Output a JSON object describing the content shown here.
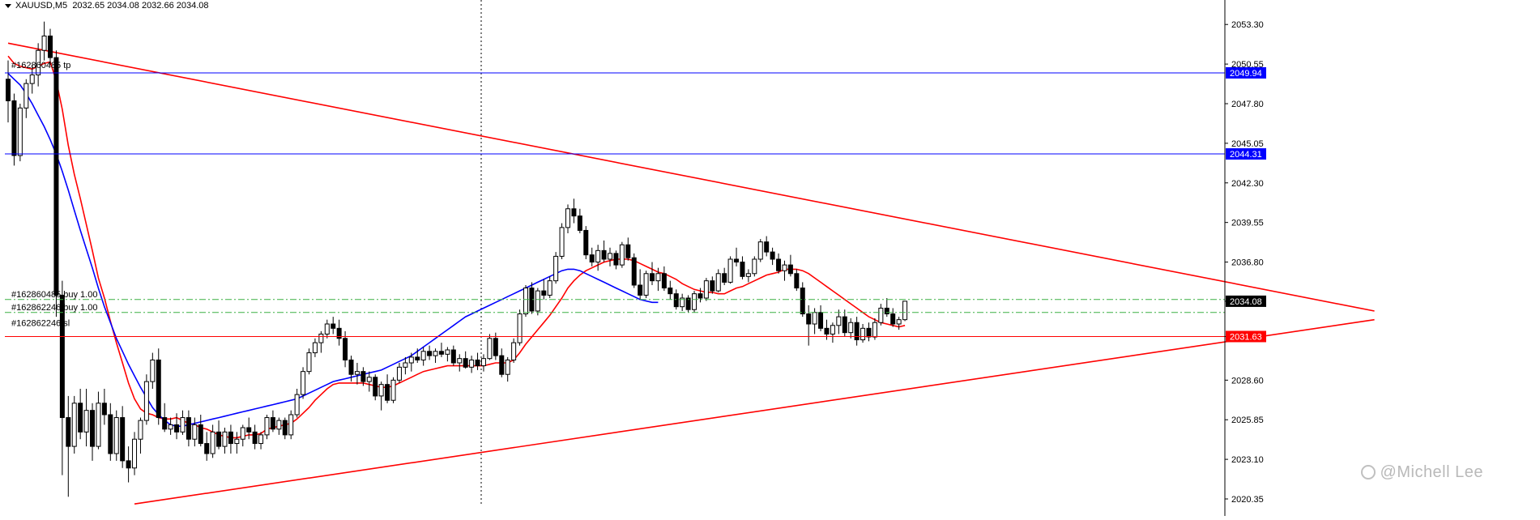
{
  "header": {
    "symbol": "XAUUSD,M5",
    "ohlc": "2032.65 2034.08 2032.66 2034.08"
  },
  "watermark": "@Michell Lee",
  "chart_data": {
    "type": "candlestick",
    "ylim": [
      2019.9,
      2055.0
    ],
    "y_ticks": [
      "2053.30",
      "2050.55",
      "2047.80",
      "2045.05",
      "2042.30",
      "2039.55",
      "2036.80",
      "2034.08",
      "2031.63",
      "2028.60",
      "2025.85",
      "2023.10",
      "2020.35"
    ],
    "current_price": {
      "value": 2034.08,
      "label": "2034.08",
      "color": "#000000"
    },
    "price_lines": [
      {
        "value": 2049.94,
        "label": "2049.94",
        "color": "#0000ff"
      },
      {
        "value": 2044.31,
        "label": "2044.31",
        "color": "#0000ff"
      },
      {
        "value": 2031.63,
        "label": "2031.63",
        "color": "#ff0000"
      }
    ],
    "order_lines": [
      {
        "value": 2034.2,
        "label": "#162860485 buy 1.00",
        "color": "#3cb043",
        "style": "dash-dot"
      },
      {
        "value": 2033.3,
        "label": "#162862246 buy 1.00",
        "color": "#3cb043",
        "style": "dash-dot"
      }
    ],
    "order_tags": [
      {
        "value": 2050.1,
        "label": "#162860485 tp"
      },
      {
        "value": 2032.2,
        "label": "#162862246 sl"
      }
    ],
    "trendlines": [
      {
        "from": [
          0,
          2052.0
        ],
        "to": [
          227,
          2033.4
        ],
        "color": "#ff0000"
      },
      {
        "from": [
          21,
          2020.0
        ],
        "to": [
          227,
          2032.8
        ],
        "color": "#ff0000"
      }
    ],
    "ohlc": [
      [
        2049.5,
        2050.8,
        2046.5,
        2048.0
      ],
      [
        2048.0,
        2048.5,
        2043.5,
        2044.2
      ],
      [
        2044.2,
        2047.8,
        2043.8,
        2047.5
      ],
      [
        2047.5,
        2049.5,
        2046.8,
        2049.2
      ],
      [
        2049.2,
        2050.5,
        2048.5,
        2049.8
      ],
      [
        2049.8,
        2052.0,
        2049.0,
        2051.5
      ],
      [
        2051.5,
        2053.5,
        2050.8,
        2052.5
      ],
      [
        2052.5,
        2053.0,
        2050.5,
        2051.0
      ],
      [
        2051.0,
        2051.5,
        2033.0,
        2034.5
      ],
      [
        2034.5,
        2035.5,
        2022.0,
        2026.0
      ],
      [
        2026.0,
        2027.5,
        2020.5,
        2024.0
      ],
      [
        2024.0,
        2027.5,
        2023.5,
        2027.0
      ],
      [
        2027.0,
        2028.0,
        2024.5,
        2025.0
      ],
      [
        2025.0,
        2028.0,
        2024.0,
        2026.5
      ],
      [
        2026.5,
        2027.0,
        2023.0,
        2024.0
      ],
      [
        2024.0,
        2027.8,
        2023.8,
        2027.0
      ],
      [
        2027.0,
        2028.0,
        2025.5,
        2026.2
      ],
      [
        2026.2,
        2027.0,
        2023.0,
        2023.5
      ],
      [
        2023.5,
        2026.5,
        2023.0,
        2026.0
      ],
      [
        2026.0,
        2026.8,
        2022.5,
        2023.0
      ],
      [
        2023.0,
        2024.0,
        2021.5,
        2022.5
      ],
      [
        2022.5,
        2025.0,
        2022.0,
        2024.5
      ],
      [
        2024.5,
        2026.0,
        2023.5,
        2025.8
      ],
      [
        2025.8,
        2029.0,
        2025.5,
        2028.5
      ],
      [
        2028.5,
        2030.5,
        2028.0,
        2030.0
      ],
      [
        2030.0,
        2030.8,
        2025.5,
        2026.0
      ],
      [
        2026.0,
        2027.0,
        2025.0,
        2025.2
      ],
      [
        2025.2,
        2026.0,
        2024.8,
        2025.5
      ],
      [
        2025.5,
        2026.3,
        2024.5,
        2025.0
      ],
      [
        2025.0,
        2026.5,
        2024.8,
        2026.0
      ],
      [
        2026.0,
        2026.5,
        2024.0,
        2024.5
      ],
      [
        2024.5,
        2026.0,
        2024.0,
        2025.5
      ],
      [
        2025.5,
        2026.2,
        2024.0,
        2024.2
      ],
      [
        2024.2,
        2025.0,
        2023.0,
        2023.5
      ],
      [
        2023.5,
        2025.5,
        2023.2,
        2025.0
      ],
      [
        2025.0,
        2025.8,
        2023.8,
        2024.0
      ],
      [
        2024.0,
        2025.3,
        2023.5,
        2025.0
      ],
      [
        2025.0,
        2025.5,
        2023.5,
        2024.2
      ],
      [
        2024.2,
        2025.0,
        2023.5,
        2024.5
      ],
      [
        2024.5,
        2025.5,
        2024.0,
        2025.3
      ],
      [
        2025.3,
        2026.0,
        2024.5,
        2025.0
      ],
      [
        2025.0,
        2025.5,
        2023.8,
        2024.2
      ],
      [
        2024.2,
        2025.0,
        2023.8,
        2024.8
      ],
      [
        2024.8,
        2026.2,
        2024.5,
        2026.0
      ],
      [
        2026.0,
        2026.5,
        2025.0,
        2025.2
      ],
      [
        2025.2,
        2026.0,
        2024.8,
        2025.8
      ],
      [
        2025.8,
        2026.0,
        2024.5,
        2024.8
      ],
      [
        2024.8,
        2026.5,
        2024.5,
        2026.2
      ],
      [
        2026.2,
        2028.0,
        2026.0,
        2027.6
      ],
      [
        2027.6,
        2029.5,
        2027.3,
        2029.2
      ],
      [
        2029.2,
        2030.8,
        2029.0,
        2030.5
      ],
      [
        2030.5,
        2031.5,
        2030.2,
        2031.2
      ],
      [
        2031.2,
        2032.0,
        2030.5,
        2031.8
      ],
      [
        2031.8,
        2032.8,
        2031.5,
        2032.5
      ],
      [
        2032.5,
        2033.0,
        2031.8,
        2032.2
      ],
      [
        2032.2,
        2032.8,
        2031.0,
        2031.5
      ],
      [
        2031.5,
        2032.0,
        2029.5,
        2030.0
      ],
      [
        2030.0,
        2030.3,
        2028.5,
        2029.0
      ],
      [
        2029.0,
        2029.8,
        2028.3,
        2029.2
      ],
      [
        2029.2,
        2029.5,
        2028.2,
        2028.5
      ],
      [
        2028.5,
        2029.2,
        2027.8,
        2028.8
      ],
      [
        2028.8,
        2029.0,
        2027.2,
        2027.5
      ],
      [
        2027.5,
        2028.5,
        2026.5,
        2028.3
      ],
      [
        2028.3,
        2029.0,
        2027.0,
        2027.2
      ],
      [
        2027.2,
        2028.8,
        2027.0,
        2028.6
      ],
      [
        2028.6,
        2029.8,
        2028.4,
        2029.5
      ],
      [
        2029.5,
        2030.2,
        2029.0,
        2029.8
      ],
      [
        2029.8,
        2030.5,
        2029.2,
        2030.2
      ],
      [
        2030.2,
        2030.8,
        2029.8,
        2030.0
      ],
      [
        2030.0,
        2030.9,
        2029.6,
        2030.6
      ],
      [
        2030.6,
        2031.0,
        2030.0,
        2030.3
      ],
      [
        2030.3,
        2030.8,
        2029.8,
        2030.6
      ],
      [
        2030.6,
        2031.2,
        2030.2,
        2030.4
      ],
      [
        2030.4,
        2030.9,
        2029.9,
        2030.7
      ],
      [
        2030.7,
        2031.0,
        2029.6,
        2029.8
      ],
      [
        2029.8,
        2030.4,
        2029.2,
        2030.1
      ],
      [
        2030.1,
        2030.6,
        2029.4,
        2029.5
      ],
      [
        2029.5,
        2030.3,
        2029.1,
        2030.0
      ],
      [
        2030.0,
        2030.5,
        2029.3,
        2029.6
      ],
      [
        2029.6,
        2030.4,
        2029.2,
        2030.1
      ],
      [
        2030.1,
        2031.8,
        2030.0,
        2031.5
      ],
      [
        2031.5,
        2031.9,
        2030.0,
        2030.3
      ],
      [
        2030.3,
        2030.8,
        2028.8,
        2029.0
      ],
      [
        2029.0,
        2030.2,
        2028.5,
        2030.0
      ],
      [
        2030.0,
        2031.5,
        2029.8,
        2031.2
      ],
      [
        2031.2,
        2033.5,
        2031.0,
        2033.2
      ],
      [
        2033.2,
        2035.2,
        2033.0,
        2035.0
      ],
      [
        2035.0,
        2035.4,
        2033.2,
        2033.4
      ],
      [
        2033.4,
        2035.0,
        2033.1,
        2034.8
      ],
      [
        2034.8,
        2035.6,
        2034.2,
        2034.5
      ],
      [
        2034.5,
        2035.8,
        2034.3,
        2035.5
      ],
      [
        2035.5,
        2037.5,
        2035.3,
        2037.2
      ],
      [
        2037.2,
        2039.5,
        2037.0,
        2039.2
      ],
      [
        2039.2,
        2040.8,
        2038.8,
        2040.5
      ],
      [
        2040.5,
        2041.2,
        2039.5,
        2040.0
      ],
      [
        2040.0,
        2040.5,
        2038.8,
        2039.0
      ],
      [
        2039.0,
        2039.3,
        2037.0,
        2037.3
      ],
      [
        2037.3,
        2037.8,
        2036.5,
        2036.8
      ],
      [
        2036.8,
        2038.0,
        2036.2,
        2037.6
      ],
      [
        2037.6,
        2038.3,
        2036.8,
        2037.0
      ],
      [
        2037.0,
        2037.8,
        2036.5,
        2037.4
      ],
      [
        2037.4,
        2037.6,
        2036.3,
        2036.6
      ],
      [
        2036.6,
        2038.2,
        2036.4,
        2038.0
      ],
      [
        2038.0,
        2038.5,
        2036.9,
        2037.1
      ],
      [
        2037.1,
        2037.4,
        2035.0,
        2035.2
      ],
      [
        2035.2,
        2036.3,
        2034.2,
        2034.5
      ],
      [
        2034.5,
        2036.2,
        2034.3,
        2036.0
      ],
      [
        2036.0,
        2036.8,
        2035.2,
        2035.5
      ],
      [
        2035.5,
        2036.4,
        2034.8,
        2036.0
      ],
      [
        2036.0,
        2036.5,
        2034.8,
        2035.0
      ],
      [
        2035.0,
        2035.5,
        2034.2,
        2034.6
      ],
      [
        2034.6,
        2034.9,
        2033.5,
        2033.7
      ],
      [
        2033.7,
        2034.6,
        2033.4,
        2034.3
      ],
      [
        2034.3,
        2034.5,
        2033.3,
        2033.5
      ],
      [
        2033.5,
        2034.8,
        2033.3,
        2034.6
      ],
      [
        2034.6,
        2035.0,
        2034.0,
        2034.3
      ],
      [
        2034.3,
        2035.7,
        2034.1,
        2035.5
      ],
      [
        2035.5,
        2035.8,
        2034.6,
        2034.8
      ],
      [
        2034.8,
        2036.3,
        2034.7,
        2036.0
      ],
      [
        2036.0,
        2036.4,
        2035.2,
        2035.4
      ],
      [
        2035.4,
        2037.2,
        2035.3,
        2037.0
      ],
      [
        2037.0,
        2037.8,
        2036.5,
        2036.8
      ],
      [
        2036.8,
        2037.2,
        2035.6,
        2035.8
      ],
      [
        2035.8,
        2036.3,
        2035.4,
        2036.0
      ],
      [
        2036.0,
        2037.2,
        2035.8,
        2037.0
      ],
      [
        2037.0,
        2038.4,
        2036.8,
        2038.2
      ],
      [
        2038.2,
        2038.6,
        2037.2,
        2037.5
      ],
      [
        2037.5,
        2037.8,
        2036.6,
        2037.0
      ],
      [
        2037.0,
        2037.4,
        2036.0,
        2036.2
      ],
      [
        2036.2,
        2036.9,
        2035.5,
        2036.6
      ],
      [
        2036.6,
        2037.3,
        2035.8,
        2036.0
      ],
      [
        2036.0,
        2036.3,
        2034.8,
        2035.0
      ],
      [
        2035.0,
        2035.4,
        2033.0,
        2033.2
      ],
      [
        2033.2,
        2033.8,
        2031.0,
        2032.5
      ],
      [
        2032.5,
        2033.6,
        2031.8,
        2033.3
      ],
      [
        2033.3,
        2033.8,
        2032.0,
        2032.2
      ],
      [
        2032.2,
        2032.8,
        2031.4,
        2031.8
      ],
      [
        2031.8,
        2032.6,
        2031.2,
        2032.4
      ],
      [
        2032.4,
        2033.5,
        2031.8,
        2033.0
      ],
      [
        2033.0,
        2033.5,
        2031.6,
        2031.9
      ],
      [
        2031.9,
        2032.9,
        2031.5,
        2032.6
      ],
      [
        2032.6,
        2033.0,
        2031.0,
        2031.4
      ],
      [
        2031.4,
        2032.5,
        2031.2,
        2032.2
      ],
      [
        2032.2,
        2032.6,
        2031.3,
        2031.6
      ],
      [
        2031.6,
        2032.9,
        2031.4,
        2032.6
      ],
      [
        2032.6,
        2033.9,
        2032.4,
        2033.6
      ],
      [
        2033.6,
        2034.3,
        2033.0,
        2033.2
      ],
      [
        2033.2,
        2033.6,
        2032.3,
        2032.5
      ],
      [
        2032.5,
        2033.0,
        2032.1,
        2032.8
      ],
      [
        2032.8,
        2034.1,
        2032.7,
        2034.08
      ]
    ],
    "series": [
      {
        "name": "",
        "color": "#ff0000",
        "values": [
          2051.1,
          2050.6,
          2050.4,
          2050.3,
          2050.2,
          2050.4,
          2050.6,
          2050.7,
          2049.4,
          2047.4,
          2044.9,
          2042.9,
          2041.2,
          2039.4,
          2037.6,
          2035.7,
          2034.3,
          2032.7,
          2031.2,
          2029.8,
          2028.4,
          2027.3,
          2026.6,
          2026.3,
          2026.2,
          2026.0,
          2025.9,
          2025.9,
          2026.0,
          2025.8,
          2025.6,
          2025.5,
          2025.3,
          2025.2,
          2025.0,
          2024.8,
          2024.7,
          2024.6,
          2024.6,
          2024.7,
          2024.8,
          2024.8,
          2024.9,
          2025.2,
          2025.3,
          2025.4,
          2025.5,
          2025.6,
          2025.9,
          2026.3,
          2026.7,
          2027.2,
          2027.6,
          2028.0,
          2028.3,
          2028.4,
          2028.4,
          2028.4,
          2028.4,
          2028.4,
          2028.3,
          2028.2,
          2028.1,
          2028.1,
          2028.2,
          2028.4,
          2028.6,
          2028.8,
          2029.0,
          2029.2,
          2029.3,
          2029.4,
          2029.5,
          2029.6,
          2029.6,
          2029.6,
          2029.6,
          2029.6,
          2029.6,
          2029.6,
          2029.7,
          2029.8,
          2029.8,
          2029.8,
          2030.0,
          2030.5,
          2031.1,
          2031.6,
          2032.1,
          2032.6,
          2033.1,
          2033.7,
          2034.3,
          2035.0,
          2035.5,
          2035.9,
          2036.2,
          2036.4,
          2036.6,
          2036.8,
          2036.9,
          2037.0,
          2037.0,
          2037.0,
          2036.9,
          2036.7,
          2036.5,
          2036.3,
          2036.1,
          2036.0,
          2035.8,
          2035.6,
          2035.3,
          2035.1,
          2034.9,
          2034.8,
          2034.7,
          2034.7,
          2034.6,
          2034.6,
          2034.8,
          2035.0,
          2035.1,
          2035.3,
          2035.5,
          2035.7,
          2035.9,
          2036.0,
          2036.1,
          2036.3,
          2036.3,
          2036.3,
          2036.2,
          2036.0,
          2035.7,
          2035.4,
          2035.1,
          2034.8,
          2034.5,
          2034.2,
          2033.9,
          2033.6,
          2033.3,
          2033.0,
          2032.8,
          2032.6,
          2032.5,
          2032.4,
          2032.3,
          2032.4
        ]
      },
      {
        "name": "",
        "color": "#0000ff",
        "values": [
          2049.9,
          2049.5,
          2049.1,
          2048.5,
          2047.8,
          2047.0,
          2046.2,
          2045.3,
          2044.3,
          2043.1,
          2041.8,
          2040.4,
          2039.0,
          2037.7,
          2036.4,
          2035.0,
          2033.7,
          2032.6,
          2031.5,
          2030.6,
          2029.7,
          2028.9,
          2028.1,
          2027.4,
          2026.7,
          2026.2,
          2025.8,
          2025.5,
          2025.4,
          2025.4,
          2025.5,
          2025.6,
          2025.7,
          2025.8,
          2025.9,
          2026.0,
          2026.1,
          2026.2,
          2026.3,
          2026.4,
          2026.5,
          2026.6,
          2026.7,
          2026.8,
          2026.9,
          2027.0,
          2027.1,
          2027.2,
          2027.3,
          2027.5,
          2027.7,
          2027.9,
          2028.1,
          2028.3,
          2028.5,
          2028.6,
          2028.7,
          2028.8,
          2028.9,
          2029.0,
          2029.1,
          2029.2,
          2029.3,
          2029.5,
          2029.7,
          2029.9,
          2030.1,
          2030.3,
          2030.6,
          2030.9,
          2031.2,
          2031.5,
          2031.8,
          2032.1,
          2032.4,
          2032.7,
          2033.0,
          2033.2,
          2033.4,
          2033.6,
          2033.8,
          2034.0,
          2034.2,
          2034.4,
          2034.6,
          2034.8,
          2035.0,
          2035.2,
          2035.4,
          2035.6,
          2035.8,
          2036.0,
          2036.2,
          2036.3,
          2036.3,
          2036.2,
          2036.0,
          2035.8,
          2035.6,
          2035.4,
          2035.2,
          2035.0,
          2034.8,
          2034.6,
          2034.4,
          2034.2,
          2034.1,
          2034.0,
          2034.0
        ]
      }
    ]
  }
}
